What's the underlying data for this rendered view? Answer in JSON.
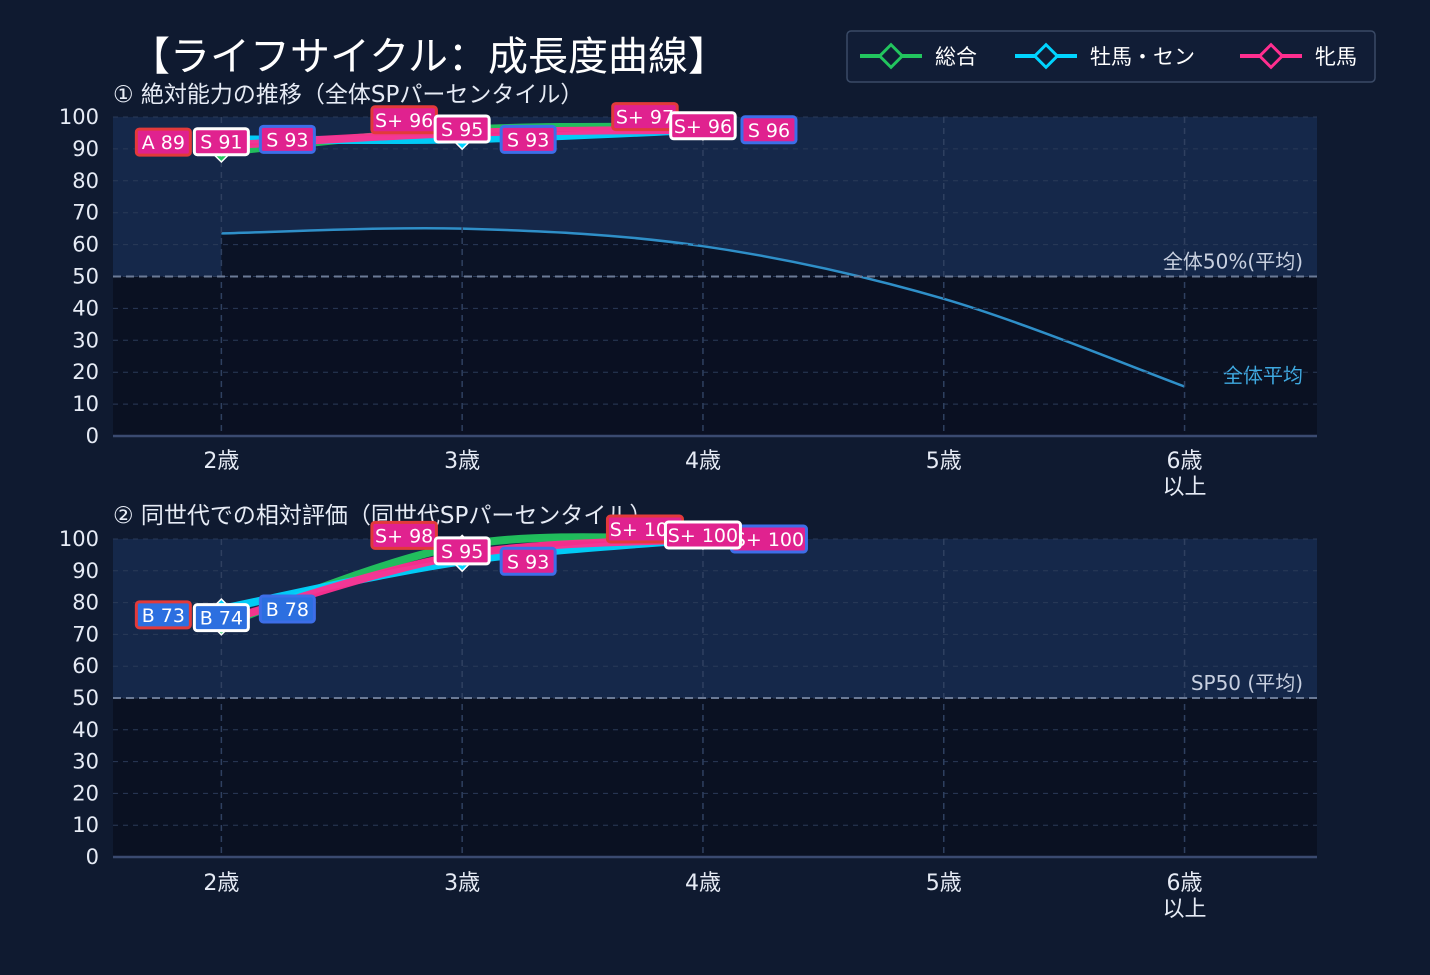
{
  "title": "【ライフサイクル：成長度曲線】",
  "legend": [
    {
      "name": "総合",
      "color": "#22c55e"
    },
    {
      "name": "牡馬・セン",
      "color": "#00d4ff"
    },
    {
      "name": "牝馬",
      "color": "#ff2e8f"
    }
  ],
  "colors": {
    "background": "#0f1a30",
    "plot_upper": "#15284a",
    "plot_lower": "#0a1122",
    "average_line": "#2f8fc8",
    "label_fill": "#e0228f",
    "label_border_total": "#e23a3a",
    "label_border_male": "#3d6ee8",
    "label_border_female": "#ffffff",
    "label_fill_blue": "#2c6fe0"
  },
  "chart_data": [
    {
      "type": "line",
      "title": "① 絶対能力の推移（全体SPパーセンタイル）",
      "categories": [
        "2歳",
        "3歳",
        "4歳",
        "5歳",
        "6歳\n以上"
      ],
      "x": [
        2,
        3,
        4,
        5,
        6
      ],
      "ylim": [
        0,
        100
      ],
      "yticks": [
        0,
        10,
        20,
        30,
        40,
        50,
        60,
        70,
        80,
        90,
        100
      ],
      "grid": true,
      "series": [
        {
          "name": "総合",
          "color": "#22c55e",
          "x": [
            2,
            3,
            4
          ],
          "values": [
            89,
            96,
            97
          ],
          "labels": [
            "A 89",
            "S+ 96",
            "S+ 97"
          ]
        },
        {
          "name": "牡馬・セン",
          "color": "#00d4ff",
          "x": [
            2,
            3,
            4
          ],
          "values": [
            93,
            93,
            96
          ],
          "labels": [
            "S 93",
            "S 93",
            "S 96"
          ]
        },
        {
          "name": "牝馬",
          "color": "#ff2e8f",
          "x": [
            2,
            3,
            4
          ],
          "values": [
            91,
            95,
            96
          ],
          "labels": [
            "S 91",
            "S 95",
            "S+ 96"
          ]
        }
      ],
      "average": {
        "label": "全体平均",
        "x": [
          2,
          3,
          4,
          5,
          6
        ],
        "values": [
          63.5,
          65,
          59.5,
          43,
          15.5
        ]
      },
      "reference": {
        "value": 50,
        "label": "全体50%(平均)"
      }
    },
    {
      "type": "line",
      "title": "② 同世代での相対評価（同世代SPパーセンタイル）",
      "categories": [
        "2歳",
        "3歳",
        "4歳",
        "5歳",
        "6歳\n以上"
      ],
      "x": [
        2,
        3,
        4,
        5,
        6
      ],
      "ylim": [
        0,
        100
      ],
      "yticks": [
        0,
        10,
        20,
        30,
        40,
        50,
        60,
        70,
        80,
        90,
        100
      ],
      "grid": true,
      "series": [
        {
          "name": "総合",
          "color": "#22c55e",
          "x": [
            2,
            3,
            4
          ],
          "values": [
            73,
            98,
            100
          ],
          "labels": [
            "B 73",
            "S+ 98",
            "S+ 100"
          ]
        },
        {
          "name": "牡馬・セン",
          "color": "#00d4ff",
          "x": [
            2,
            3,
            4
          ],
          "values": [
            78,
            93,
            100
          ],
          "labels": [
            "B 78",
            "S 93",
            "S+ 100"
          ]
        },
        {
          "name": "牝馬",
          "color": "#ff2e8f",
          "x": [
            2,
            3,
            4
          ],
          "values": [
            74,
            95,
            100
          ],
          "labels": [
            "B 74",
            "S 95",
            "S+ 100"
          ]
        }
      ],
      "reference": {
        "value": 50,
        "label": "SP50 (平均)"
      }
    }
  ]
}
